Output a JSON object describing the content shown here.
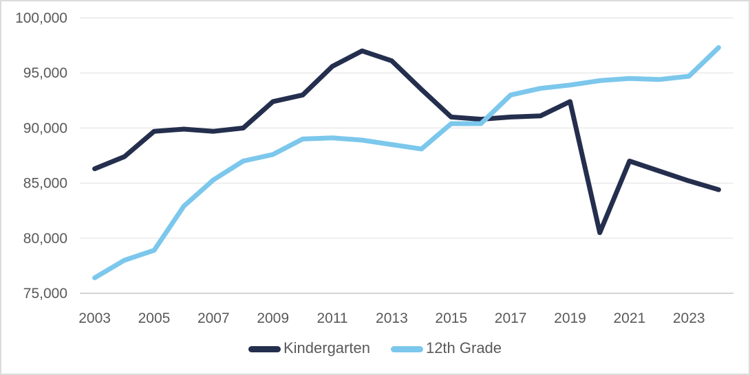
{
  "chart_data": {
    "type": "line",
    "title": "",
    "xlabel": "",
    "ylabel": "",
    "x": [
      2003,
      2004,
      2005,
      2006,
      2007,
      2008,
      2009,
      2010,
      2011,
      2012,
      2013,
      2014,
      2015,
      2016,
      2017,
      2018,
      2019,
      2020,
      2021,
      2022,
      2023,
      2024
    ],
    "x_tick_labels": [
      "2003",
      "2005",
      "2007",
      "2009",
      "2011",
      "2013",
      "2015",
      "2017",
      "2019",
      "2021",
      "2023"
    ],
    "series": [
      {
        "name": "Kindergarten",
        "color": "#242E4D",
        "values": [
          86300,
          87400,
          89700,
          89900,
          89700,
          90000,
          92400,
          93000,
          95600,
          97000,
          96100,
          93500,
          91000,
          90800,
          91000,
          91100,
          92400,
          80500,
          87000,
          86100,
          85200,
          84400
        ]
      },
      {
        "name": "12th Grade",
        "color": "#7CC7EC",
        "values": [
          76400,
          78000,
          78900,
          82900,
          85300,
          87000,
          87600,
          89000,
          89100,
          88900,
          88500,
          88100,
          90400,
          90400,
          93000,
          93600,
          93900,
          94300,
          94500,
          94400,
          94700,
          97300
        ]
      }
    ],
    "ylim": [
      75000,
      100000
    ],
    "y_ticks": [
      75000,
      80000,
      85000,
      90000,
      95000,
      100000
    ],
    "y_tick_labels": [
      "75,000",
      "80,000",
      "85,000",
      "90,000",
      "95,000",
      "100,000"
    ],
    "grid": "horizontal",
    "legend_position": "bottom"
  },
  "style": {
    "grid_color": "#E9E9E9",
    "axis_line_color": "#D4D4D4",
    "tick_label_color": "#595959",
    "line_width": 7
  }
}
